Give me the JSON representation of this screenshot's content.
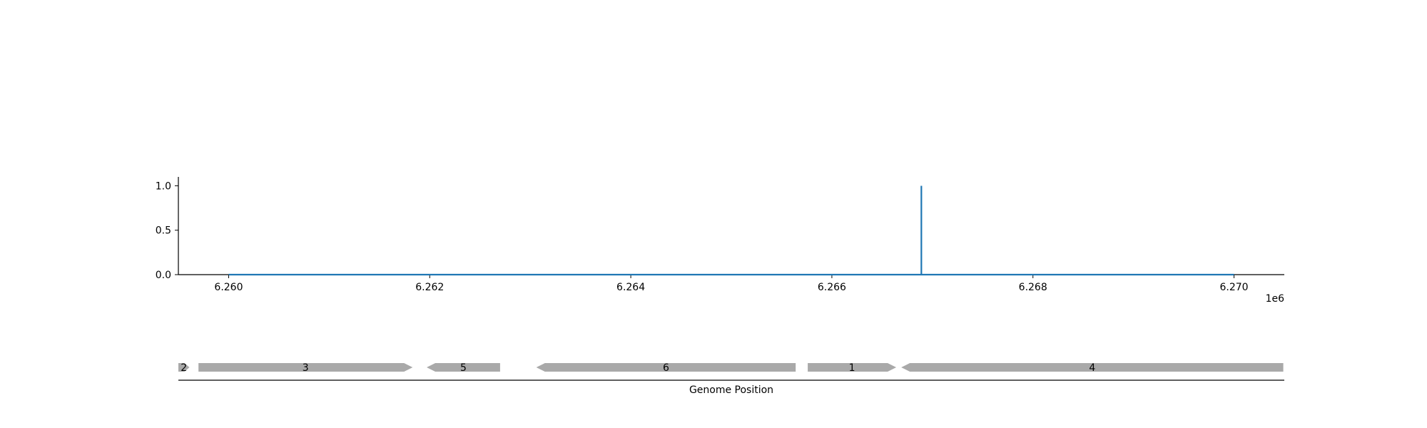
{
  "chart_data": [
    {
      "type": "line",
      "title": "",
      "xlabel": "",
      "ylabel": "",
      "x_offset_label": "1e6",
      "xlim": [
        6259500,
        6270500
      ],
      "ylim": [
        0,
        1.1
      ],
      "xticks": [
        6260000,
        6262000,
        6264000,
        6266000,
        6268000,
        6270000
      ],
      "xtick_labels": [
        "6.260",
        "6.262",
        "6.264",
        "6.266",
        "6.268",
        "6.270"
      ],
      "yticks": [
        0.0,
        0.5,
        1.0
      ],
      "ytick_labels": [
        "0.0",
        "0.5",
        "1.0"
      ],
      "grid": false,
      "series": [
        {
          "color": "#1f77b4",
          "x": [
            6260000,
            6266890,
            6266890,
            6266890,
            6270000
          ],
          "y": [
            0,
            0,
            1,
            0,
            0
          ]
        }
      ]
    },
    {
      "type": "gene-track",
      "xlabel": "Genome Position",
      "xlim": [
        6259500,
        6270500
      ],
      "feature_color": "#a9a9a9",
      "features": [
        {
          "label": "2",
          "start": 6259500,
          "end": 6259610,
          "strand": "+"
        },
        {
          "label": "3",
          "start": 6259700,
          "end": 6261830,
          "strand": "+"
        },
        {
          "label": "5",
          "start": 6261970,
          "end": 6262700,
          "strand": "-"
        },
        {
          "label": "6",
          "start": 6263060,
          "end": 6265640,
          "strand": "-"
        },
        {
          "label": "1",
          "start": 6265760,
          "end": 6266640,
          "strand": "+"
        },
        {
          "label": "4",
          "start": 6266690,
          "end": 6270490,
          "strand": "-"
        }
      ]
    }
  ]
}
